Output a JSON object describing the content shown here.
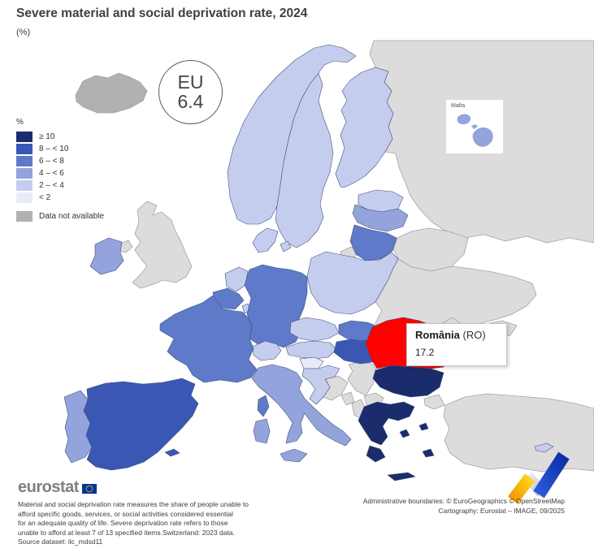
{
  "title": "Severe material and social deprivation rate, 2024",
  "subtitle": "(%)",
  "eu_badge": {
    "label": "EU",
    "value": "6.4"
  },
  "legend": {
    "title": "%",
    "items": [
      {
        "key": "ge10",
        "label": "≥ 10"
      },
      {
        "key": "8to10",
        "label": "8 – < 10"
      },
      {
        "key": "6to8",
        "label": "6 – < 8"
      },
      {
        "key": "4to6",
        "label": "4 – < 6"
      },
      {
        "key": "2to4",
        "label": "2 – < 4"
      },
      {
        "key": "lt2",
        "label": "< 2"
      }
    ],
    "no_data_label": "Data not available",
    "category_colors": {
      "ge10": "#1a2c6b",
      "8to10": "#3a57b4",
      "6to8": "#5e7ac9",
      "4to6": "#93a4dc",
      "2to4": "#c5cdef",
      "lt2": "#e9ecf8",
      "not_available": "#b1b1b1",
      "non_eu": "#dcdcdc",
      "hover": "#fe0000"
    }
  },
  "tooltip": {
    "country": "România",
    "code": "(RO)",
    "value": "17.2"
  },
  "inset": {
    "label": "Malta"
  },
  "map": {
    "sea_color": "#ffffff",
    "border_eu": "#41517c",
    "border_non_eu": "#a3a3a3",
    "values": {
      "eu": "6.4",
      "romania": "17.2"
    },
    "countries": {
      "iceland": "not_available",
      "russia": "non_eu",
      "belarus": "non_eu",
      "ukraine": "non_eu",
      "moldova": "non_eu",
      "kaliningrad": "non_eu",
      "turkey": "non_eu",
      "uk": "non_eu",
      "n_ireland": "non_eu",
      "serbia": "non_eu",
      "bosnia": "non_eu",
      "montenegro": "non_eu",
      "albania": "non_eu",
      "nmacedonia": "non_eu",
      "norway": "2to4",
      "sweden": "2to4",
      "finland": "2to4",
      "estonia": "2to4",
      "latvia": "4to6",
      "lithuania": "6to8",
      "denmark": "2to4",
      "ireland": "4to6",
      "netherlands": "2to4",
      "belgium": "6to8",
      "luxembourg": "2to4",
      "germany": "6to8",
      "poland": "2to4",
      "czechia": "2to4",
      "austria": "2to4",
      "switzerland": "2to4",
      "france": "6to8",
      "corsica": "6to8",
      "spain": "8to10",
      "portugal": "4to6",
      "italy": "4to6",
      "slovenia": "lt2",
      "croatia": "2to4",
      "hungary": "8to10",
      "slovakia": "6to8",
      "bulgaria": "ge10",
      "greece": "ge10",
      "cyprus": "2to4",
      "romania": "hover",
      "malta": "4to6"
    }
  },
  "footer": {
    "logo_text": "eurostat",
    "lines": [
      "Material and social deprivation rate measures the share of people unable to",
      "afford specific goods, services, or social activities considered essential",
      "for an adequate quality of life. Severe deprivation rate refers to those",
      "unable to afford at least 7 of 13 specified items.Switzerland: 2023 data.",
      "Source dataset: ilc_mdsd11"
    ]
  },
  "attribution": {
    "line1": "Administrative boundaries: © EuroGeographics © OpenStreetMap",
    "line2": "Cartography: Eurostat – IMAGE, 09/2025"
  }
}
